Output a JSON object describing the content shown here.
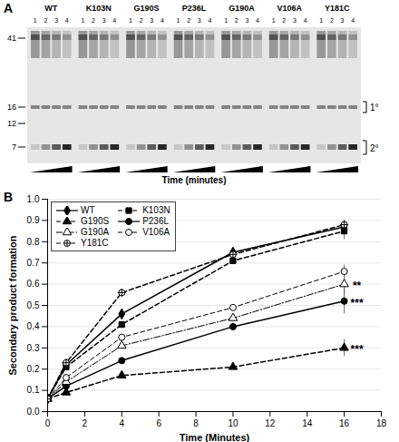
{
  "gel": {
    "letter": "A",
    "lanes": [
      "WT",
      "K103N",
      "G190S",
      "P236L",
      "G190A",
      "V106A",
      "Y181C"
    ],
    "lane_numbers": [
      "1",
      "2",
      "3",
      "4"
    ],
    "markers": [
      "41",
      "16",
      "12",
      "7"
    ],
    "products": [
      "1°",
      "2°"
    ],
    "x_label": "Time (minutes)"
  },
  "chart_data": {
    "type": "line",
    "letter": "B",
    "x_label": "Time (Minutes)",
    "y_label": "Secondary product formation",
    "x": [
      0,
      1,
      4,
      10,
      16
    ],
    "xlim": [
      0,
      18
    ],
    "xticks": [
      0,
      2,
      4,
      6,
      8,
      10,
      12,
      14,
      16,
      18
    ],
    "ylim": [
      0,
      1
    ],
    "yticks": [
      {
        "value": 0,
        "label": "0.0"
      },
      {
        "value": 0.1,
        "label": "0.1"
      },
      {
        "value": 0.2,
        "label": "0.2"
      },
      {
        "value": 0.3,
        "label": "0.3"
      },
      {
        "value": 0.4,
        "label": "0.4"
      },
      {
        "value": 0.5,
        "label": "0.5"
      },
      {
        "value": 0.6,
        "label": "0.6"
      },
      {
        "value": 0.7,
        "label": "0.7"
      },
      {
        "value": 0.8,
        "label": "0.8"
      },
      {
        "value": 0.9,
        "label": "0.9"
      },
      {
        "value": 1,
        "label": "1.0"
      }
    ],
    "grid": true,
    "legend": "top-left",
    "series": [
      {
        "name": "WT",
        "color": "#000000",
        "marker": "diamond",
        "line_style": "solid",
        "values": [
          0.06,
          0.22,
          0.46,
          0.75,
          0.87
        ],
        "errors": [
          null,
          null,
          null,
          null,
          0.03
        ]
      },
      {
        "name": "K103N",
        "color": "#000000",
        "marker": "square",
        "line_style": "dashed",
        "values": [
          0.06,
          0.21,
          0.41,
          0.71,
          0.85
        ],
        "errors": [
          null,
          null,
          null,
          null,
          0.04
        ]
      },
      {
        "name": "G190S",
        "color": "#000000",
        "marker": "triangle",
        "line_style": "dashed",
        "values": [
          0.06,
          0.09,
          0.17,
          0.21,
          0.3
        ],
        "errors": [
          null,
          null,
          null,
          null,
          0.04
        ],
        "annotation": "***"
      },
      {
        "name": "P236L",
        "color": "#000000",
        "marker": "circle",
        "line_style": "solid",
        "values": [
          0.06,
          0.12,
          0.24,
          0.4,
          0.52
        ],
        "errors": [
          null,
          null,
          null,
          null,
          0.06
        ],
        "annotation": "***"
      },
      {
        "name": "G190A",
        "color": "#000000",
        "marker": "triangle-open",
        "line_style": "dash-dot",
        "values": [
          0.06,
          0.14,
          0.31,
          0.44,
          0.6
        ],
        "errors": [
          null,
          null,
          null,
          null,
          0.05
        ],
        "annotation": "**"
      },
      {
        "name": "V106A",
        "color": "#000000",
        "marker": "circle-open",
        "line_style": "dashed",
        "values": [
          0.06,
          0.16,
          0.35,
          0.49,
          0.66
        ],
        "errors": [
          null,
          null,
          null,
          null,
          0.03
        ]
      },
      {
        "name": "Y181C",
        "color": "#000000",
        "marker": "circle-cross",
        "line_style": "dashed",
        "values": [
          0.06,
          0.23,
          0.56,
          0.74,
          0.88
        ],
        "errors": [
          null,
          null,
          null,
          null,
          0.02
        ]
      }
    ]
  }
}
